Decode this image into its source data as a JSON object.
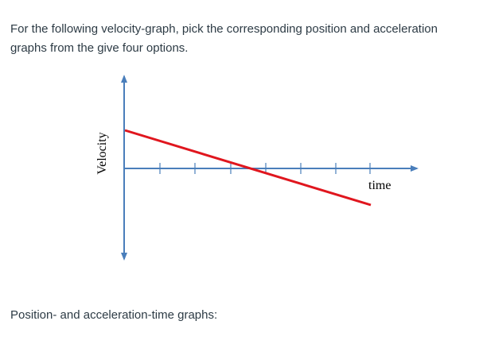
{
  "question": {
    "prompt": "For the following velocity-graph, pick the corresponding position and acceleration graphs from the give four options.",
    "sub_prompt": "Position- and acceleration-time graphs:"
  },
  "figure": {
    "ylabel": "Velocity",
    "xlabel": "time",
    "axis_color": "#4a7ebb",
    "line_color": "#e0161e"
  }
}
